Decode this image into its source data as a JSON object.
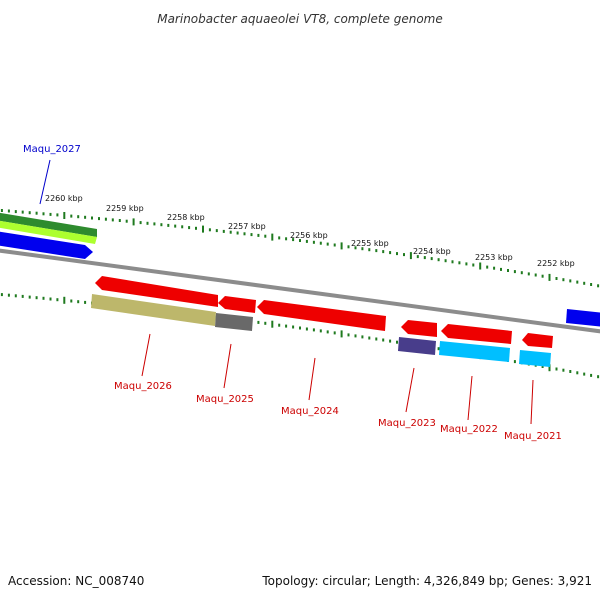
{
  "title": "Marinobacter aquaeolei VT8, complete genome",
  "footer": {
    "accession": "Accession: NC_008740",
    "topology": "Topology: circular; Length: 4,326,849 bp; Genes: 3,921"
  },
  "colors": {
    "backbone": "#8c8c8c",
    "tick": "#1f7a1f",
    "label_forward": "#0000cc",
    "label_reverse": "#cc0000"
  },
  "ruler_labels": [
    "2260 kbp",
    "2259 kbp",
    "2258 kbp",
    "2257 kbp",
    "2256 kbp",
    "2255 kbp",
    "2254 kbp",
    "2253 kbp",
    "2252 kbp"
  ],
  "gene_labels": [
    {
      "id": "Maqu_2027",
      "strand": "forward"
    },
    {
      "id": "Maqu_2026",
      "strand": "reverse"
    },
    {
      "id": "Maqu_2025",
      "strand": "reverse"
    },
    {
      "id": "Maqu_2024",
      "strand": "reverse"
    },
    {
      "id": "Maqu_2023",
      "strand": "reverse"
    },
    {
      "id": "Maqu_2022",
      "strand": "reverse"
    },
    {
      "id": "Maqu_2021",
      "strand": "reverse"
    }
  ],
  "features": [
    {
      "name": "forward-green-feature",
      "color": "#2e8b2e"
    },
    {
      "name": "forward-lightgreen-feature",
      "color": "#adff2f"
    },
    {
      "name": "forward-blue-gene",
      "color": "#0000ee"
    },
    {
      "name": "forward-blue-gene-right",
      "color": "#0000ee"
    },
    {
      "name": "reverse-red-gene-2026",
      "color": "#ee0000"
    },
    {
      "name": "reverse-olive-feature-2026",
      "color": "#bdb76b"
    },
    {
      "name": "reverse-red-gene-2025",
      "color": "#ee0000"
    },
    {
      "name": "reverse-gray-feature-2025",
      "color": "#696969"
    },
    {
      "name": "reverse-red-gene-2024",
      "color": "#ee0000"
    },
    {
      "name": "reverse-red-gene-2023",
      "color": "#ee0000"
    },
    {
      "name": "reverse-navy-feature-2023",
      "color": "#483d8b"
    },
    {
      "name": "reverse-red-gene-2022",
      "color": "#ee0000"
    },
    {
      "name": "reverse-cyan-feature-2022",
      "color": "#00bfff"
    },
    {
      "name": "reverse-red-gene-2021",
      "color": "#ee0000"
    },
    {
      "name": "reverse-cyan-feature-2021",
      "color": "#00bfff"
    }
  ]
}
